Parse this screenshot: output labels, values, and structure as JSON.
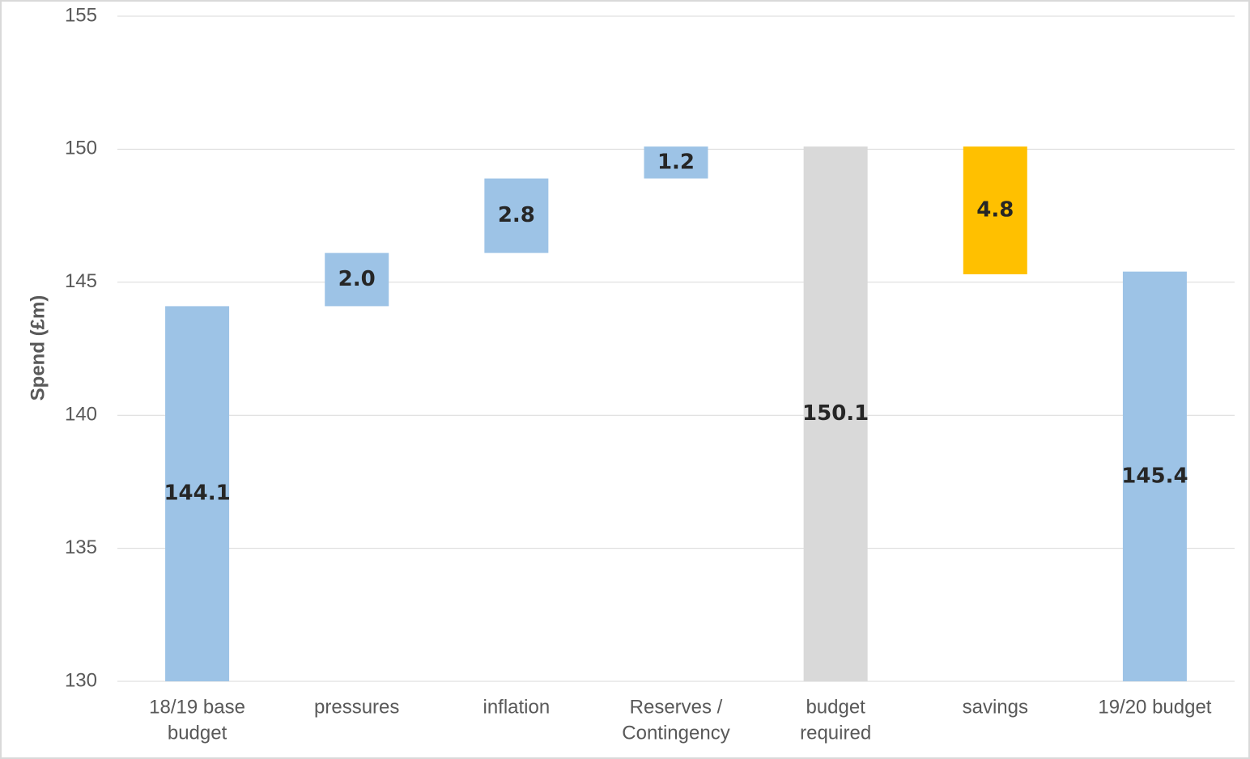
{
  "chart_data": {
    "type": "waterfall",
    "y_label": "Spend (£m)",
    "categories": [
      [
        "18/19 base",
        "budget"
      ],
      [
        "pressures"
      ],
      [
        "inflation"
      ],
      [
        "Reserves /",
        "Contingency"
      ],
      [
        "budget",
        "required"
      ],
      [
        "savings"
      ],
      [
        "19/20 budget"
      ]
    ],
    "measures": [
      "absolute",
      "relative",
      "relative",
      "relative",
      "total",
      "relative",
      "total"
    ],
    "values": [
      144.1,
      2.0,
      2.8,
      1.2,
      150.1,
      -4.8,
      145.4
    ],
    "value_labels": [
      "144.1",
      "2.0",
      "2.8",
      "1.2",
      "150.1",
      "4.8",
      "145.4"
    ],
    "colors": [
      "#9dc3e6",
      "#9dc3e6",
      "#9dc3e6",
      "#9dc3e6",
      "#d9d9d9",
      "#ffc000",
      "#9dc3e6"
    ],
    "ylim": [
      130,
      155
    ],
    "yticks": [
      130,
      135,
      140,
      145,
      150,
      155
    ],
    "grid": true
  }
}
